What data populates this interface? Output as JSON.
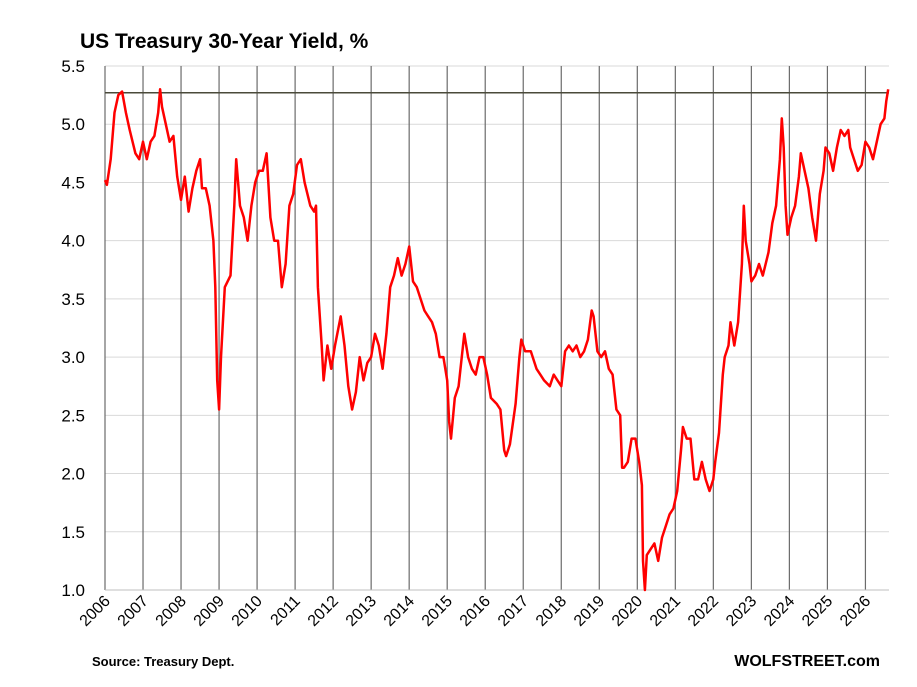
{
  "chart_data": {
    "type": "line",
    "title": "US Treasury 30-Year Yield, %",
    "source": "Source: Treasury Dept.",
    "brand": "WOLFSTREET.com",
    "xlim": [
      2006,
      2026.62
    ],
    "xticks": [
      2006,
      2007,
      2008,
      2009,
      2010,
      2011,
      2012,
      2013,
      2014,
      2015,
      2016,
      2017,
      2018,
      2019,
      2020,
      2021,
      2022,
      2023,
      2024,
      2025,
      2026
    ],
    "ylim": [
      1,
      5.5
    ],
    "yticks": [
      {
        "value": 1,
        "label": "1.0"
      },
      1.5,
      {
        "value": 2,
        "label": "2.0"
      },
      2.5,
      {
        "value": 3,
        "label": "3.0"
      },
      3.5,
      {
        "value": 4,
        "label": "4.0"
      },
      4.5,
      {
        "value": 5,
        "label": "5.0"
      },
      5.5
    ],
    "grid": true,
    "reference_line": 5.27,
    "reference_color": "#4a4a3a",
    "series": [
      {
        "name": "30-Year Yield",
        "color": "#ff0000",
        "x": [
          2006.0,
          2006.05,
          2006.15,
          2006.25,
          2006.35,
          2006.45,
          2006.55,
          2006.65,
          2006.8,
          2006.9,
          2007.0,
          2007.1,
          2007.2,
          2007.3,
          2007.4,
          2007.45,
          2007.5,
          2007.6,
          2007.7,
          2007.8,
          2007.9,
          2008.0,
          2008.1,
          2008.2,
          2008.3,
          2008.4,
          2008.5,
          2008.55,
          2008.65,
          2008.75,
          2008.85,
          2008.9,
          2008.95,
          2009.0,
          2009.05,
          2009.15,
          2009.3,
          2009.4,
          2009.45,
          2009.55,
          2009.65,
          2009.75,
          2009.85,
          2009.95,
          2010.05,
          2010.15,
          2010.25,
          2010.35,
          2010.45,
          2010.55,
          2010.65,
          2010.75,
          2010.85,
          2010.95,
          2011.05,
          2011.15,
          2011.25,
          2011.4,
          2011.5,
          2011.55,
          2011.6,
          2011.7,
          2011.75,
          2011.85,
          2011.95,
          2012.05,
          2012.2,
          2012.3,
          2012.4,
          2012.5,
          2012.6,
          2012.7,
          2012.8,
          2012.9,
          2013.0,
          2013.1,
          2013.2,
          2013.3,
          2013.4,
          2013.5,
          2013.6,
          2013.7,
          2013.8,
          2013.9,
          2014.0,
          2014.1,
          2014.2,
          2014.3,
          2014.4,
          2014.5,
          2014.6,
          2014.7,
          2014.8,
          2014.9,
          2015.0,
          2015.05,
          2015.1,
          2015.2,
          2015.3,
          2015.45,
          2015.55,
          2015.65,
          2015.75,
          2015.85,
          2015.95,
          2016.05,
          2016.15,
          2016.3,
          2016.4,
          2016.5,
          2016.55,
          2016.65,
          2016.8,
          2016.9,
          2016.95,
          2017.05,
          2017.2,
          2017.35,
          2017.45,
          2017.55,
          2017.7,
          2017.8,
          2017.9,
          2018.0,
          2018.1,
          2018.2,
          2018.3,
          2018.4,
          2018.5,
          2018.6,
          2018.7,
          2018.8,
          2018.85,
          2018.95,
          2019.05,
          2019.15,
          2019.25,
          2019.35,
          2019.45,
          2019.55,
          2019.6,
          2019.65,
          2019.75,
          2019.85,
          2019.95,
          2020.05,
          2020.12,
          2020.15,
          2020.2,
          2020.25,
          2020.35,
          2020.45,
          2020.55,
          2020.65,
          2020.75,
          2020.85,
          2020.95,
          2021.05,
          2021.15,
          2021.2,
          2021.3,
          2021.4,
          2021.5,
          2021.6,
          2021.7,
          2021.8,
          2021.9,
          2022.0,
          2022.05,
          2022.15,
          2022.25,
          2022.3,
          2022.4,
          2022.45,
          2022.55,
          2022.65,
          2022.75,
          2022.8,
          2022.85,
          2022.95,
          2023.0,
          2023.1,
          2023.2,
          2023.3,
          2023.45,
          2023.55,
          2023.65,
          2023.75,
          2023.8,
          2023.85,
          2023.9,
          2023.95,
          2024.05,
          2024.15,
          2024.25,
          2024.3,
          2024.4,
          2024.5,
          2024.6,
          2024.7,
          2024.8,
          2024.9,
          2024.95,
          2025.05,
          2025.15,
          2025.25,
          2025.35,
          2025.45,
          2025.55,
          2025.6,
          2025.7,
          2025.8,
          2025.9,
          2026.0,
          2026.1,
          2026.2,
          2026.3,
          2026.4,
          2026.5,
          2026.55,
          2026.6
        ],
        "values": [
          4.52,
          4.48,
          4.7,
          5.1,
          5.25,
          5.28,
          5.1,
          4.95,
          4.75,
          4.7,
          4.85,
          4.7,
          4.85,
          4.9,
          5.1,
          5.3,
          5.15,
          5.0,
          4.85,
          4.9,
          4.55,
          4.35,
          4.55,
          4.25,
          4.45,
          4.6,
          4.7,
          4.45,
          4.45,
          4.3,
          4.0,
          3.6,
          2.8,
          2.55,
          3.0,
          3.6,
          3.7,
          4.3,
          4.7,
          4.3,
          4.2,
          4.0,
          4.3,
          4.5,
          4.6,
          4.6,
          4.75,
          4.2,
          4.0,
          4.0,
          3.6,
          3.8,
          4.3,
          4.4,
          4.65,
          4.7,
          4.5,
          4.3,
          4.25,
          4.3,
          3.6,
          3.1,
          2.8,
          3.1,
          2.9,
          3.1,
          3.35,
          3.1,
          2.75,
          2.55,
          2.7,
          3.0,
          2.8,
          2.95,
          3.0,
          3.2,
          3.1,
          2.9,
          3.2,
          3.6,
          3.7,
          3.85,
          3.7,
          3.8,
          3.95,
          3.65,
          3.6,
          3.5,
          3.4,
          3.35,
          3.3,
          3.2,
          3.0,
          3.0,
          2.8,
          2.45,
          2.3,
          2.65,
          2.75,
          3.2,
          3.0,
          2.9,
          2.85,
          3.0,
          3.0,
          2.85,
          2.65,
          2.6,
          2.55,
          2.2,
          2.15,
          2.25,
          2.6,
          3.0,
          3.15,
          3.05,
          3.05,
          2.9,
          2.85,
          2.8,
          2.75,
          2.85,
          2.8,
          2.75,
          3.05,
          3.1,
          3.05,
          3.1,
          3.0,
          3.05,
          3.15,
          3.4,
          3.35,
          3.05,
          3.0,
          3.05,
          2.9,
          2.85,
          2.55,
          2.5,
          2.05,
          2.05,
          2.1,
          2.3,
          2.3,
          2.1,
          1.9,
          1.25,
          1.0,
          1.3,
          1.35,
          1.4,
          1.25,
          1.45,
          1.55,
          1.65,
          1.7,
          1.85,
          2.2,
          2.4,
          2.3,
          2.3,
          1.95,
          1.95,
          2.1,
          1.95,
          1.85,
          1.95,
          2.1,
          2.35,
          2.85,
          3.0,
          3.1,
          3.3,
          3.1,
          3.3,
          3.8,
          4.3,
          4.0,
          3.8,
          3.65,
          3.7,
          3.8,
          3.7,
          3.9,
          4.15,
          4.3,
          4.7,
          5.05,
          4.8,
          4.3,
          4.05,
          4.2,
          4.3,
          4.55,
          4.75,
          4.6,
          4.45,
          4.2,
          4.0,
          4.4,
          4.6,
          4.8,
          4.75,
          4.6,
          4.8,
          4.95,
          4.9,
          4.95,
          4.8,
          4.7,
          4.6,
          4.65,
          4.85,
          4.8,
          4.7,
          4.85,
          5.0,
          5.05,
          5.2,
          5.3
        ]
      }
    ]
  }
}
